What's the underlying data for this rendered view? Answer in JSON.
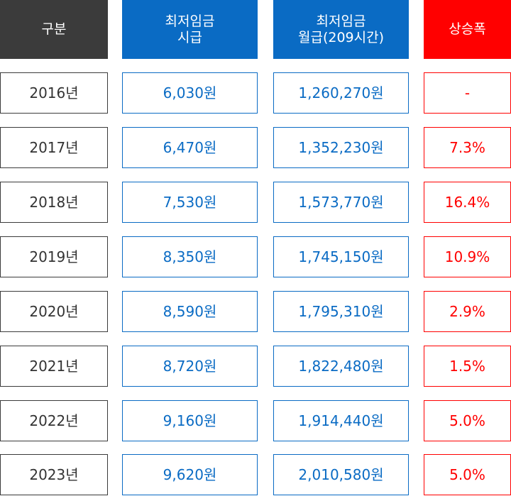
{
  "headers": [
    "구분",
    "최저임금\n시급",
    "최저임금\n월급(209시간)",
    "상승폭"
  ],
  "rows": [
    [
      "2016년",
      "6,030원",
      "1,260,270원",
      "-"
    ],
    [
      "2017년",
      "6,470원",
      "1,352,230원",
      "7.3%"
    ],
    [
      "2018년",
      "7,530원",
      "1,573,770원",
      "16.4%"
    ],
    [
      "2019년",
      "8,350원",
      "1,745,150원",
      "10.9%"
    ],
    [
      "2020년",
      "8,590원",
      "1,795,310원",
      "2.9%"
    ],
    [
      "2021년",
      "8,720원",
      "1,822,480원",
      "1.5%"
    ],
    [
      "2022년",
      "9,160원",
      "1,914,440원",
      "5.0%"
    ],
    [
      "2023년",
      "9,620원",
      "2,010,580원",
      "5.0%"
    ]
  ],
  "colors": {
    "dark": "#3b3b3b",
    "blue": "#0a6bc4",
    "red": "#ff0000"
  }
}
